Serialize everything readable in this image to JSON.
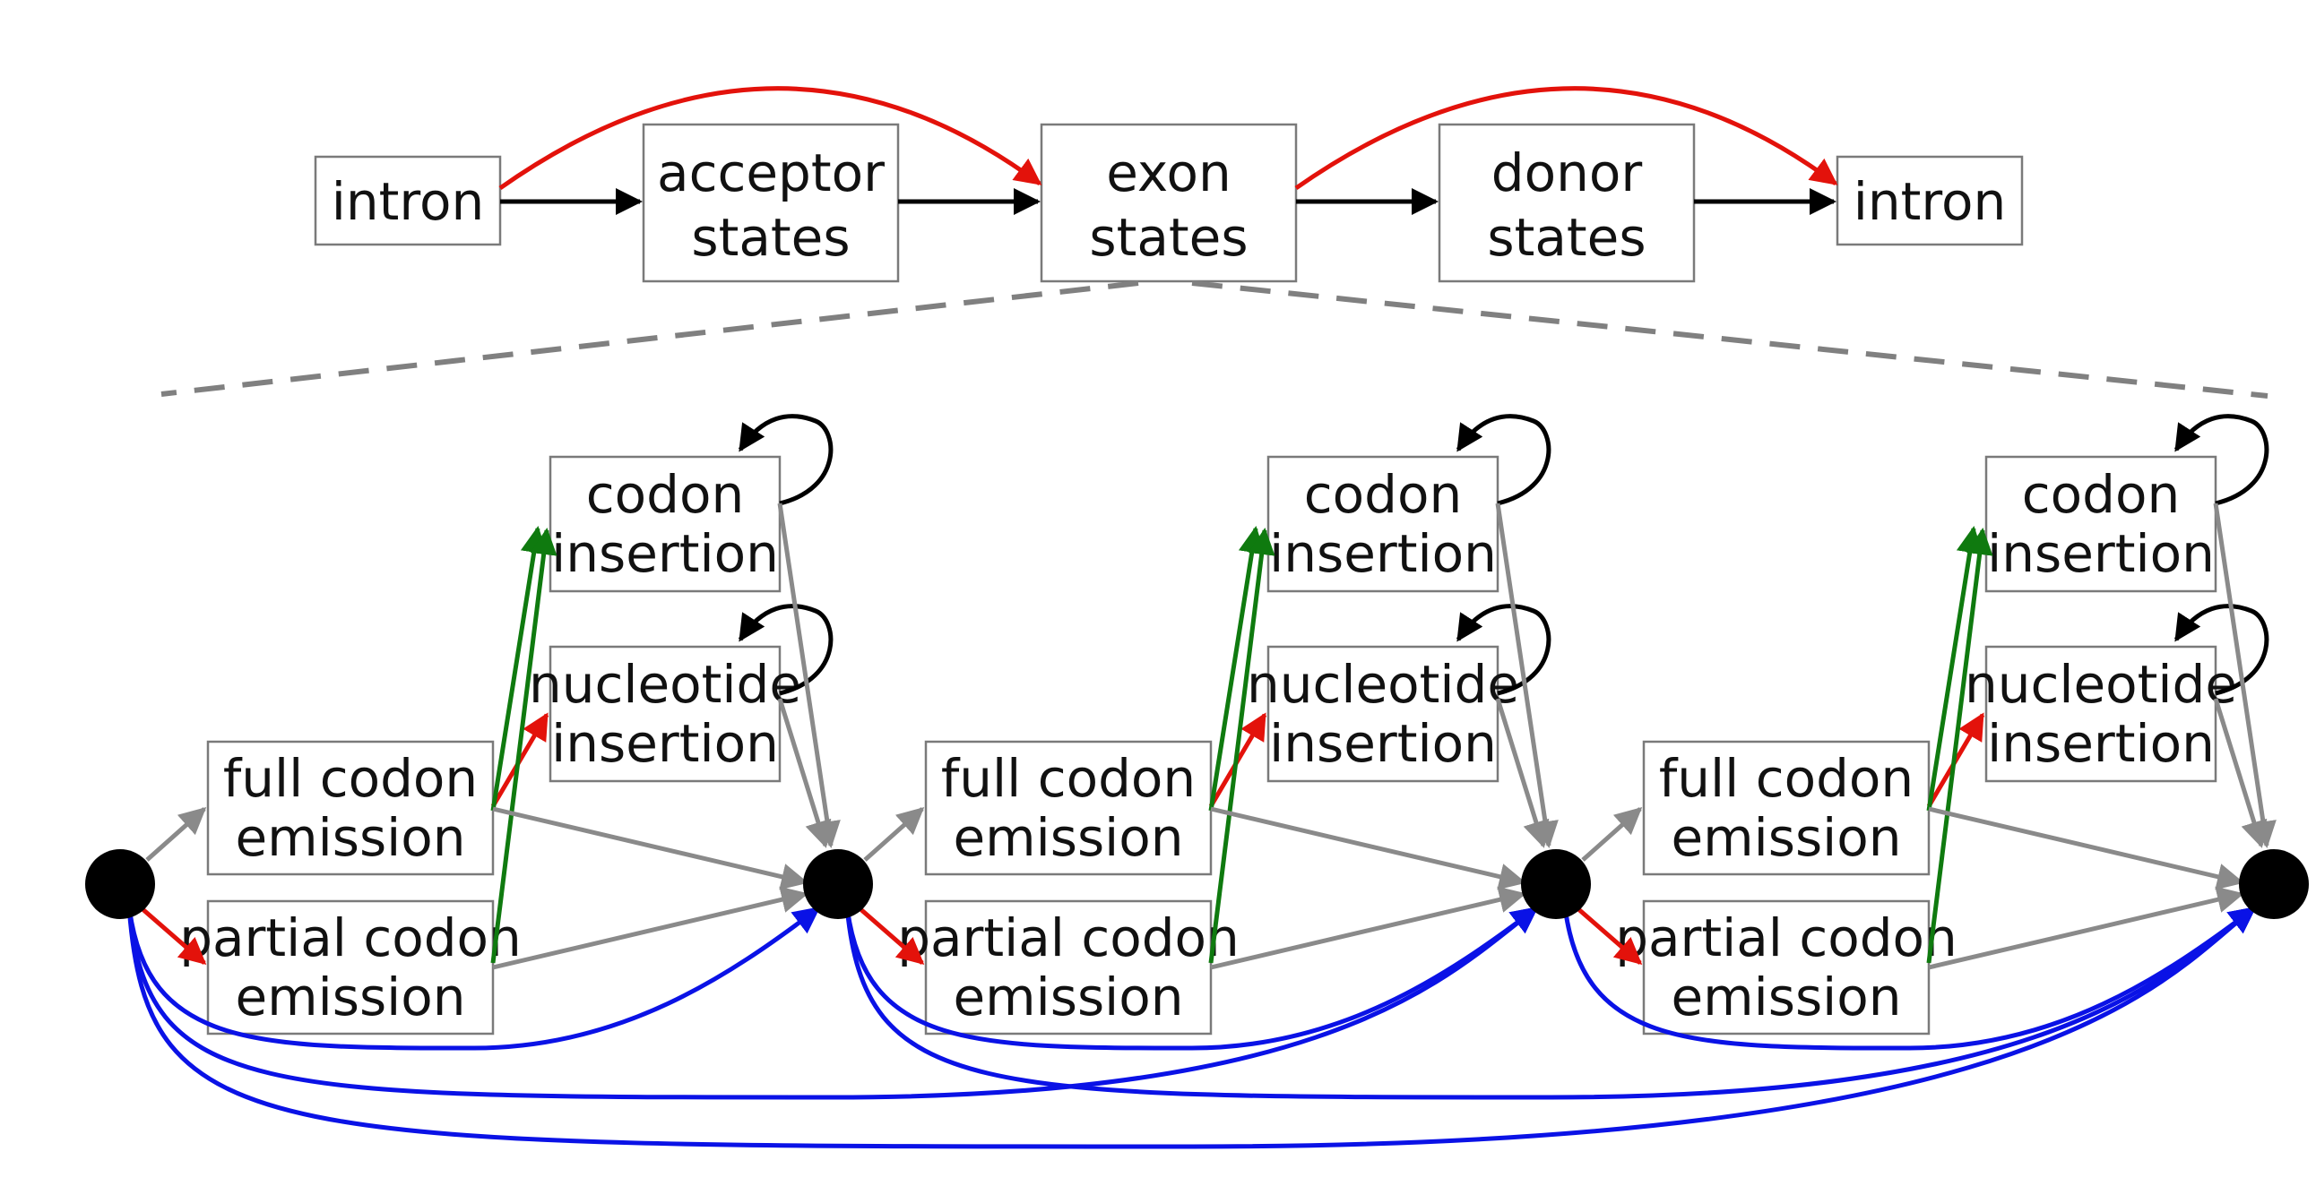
{
  "colors": {
    "flow": "#000000",
    "skip": "#e3120b",
    "neutral": "#8a8a8a",
    "insertion": "#0f7a0f",
    "bypass": "#0a12e6"
  },
  "top_row": {
    "intron_left": [
      "intron"
    ],
    "acceptor": [
      "acceptor",
      "states"
    ],
    "exon": [
      "exon",
      "states"
    ],
    "donor": [
      "donor",
      "states"
    ],
    "intron_right": [
      "intron"
    ]
  },
  "module_labels": {
    "codon_insertion": [
      "codon",
      "insertion"
    ],
    "nucleotide_insertion": [
      "nucleotide",
      "insertion"
    ],
    "full_codon": [
      "full codon",
      "emission"
    ],
    "partial_codon": [
      "partial codon",
      "emission"
    ]
  },
  "module_count": 3
}
